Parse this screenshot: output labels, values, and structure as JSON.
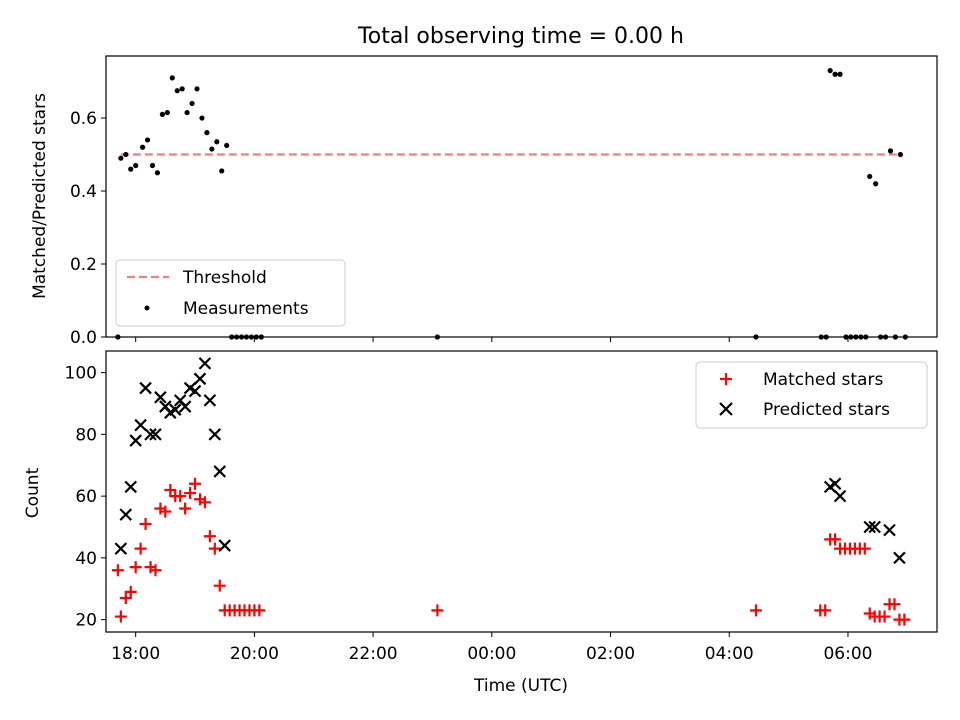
{
  "chart_data": [
    {
      "type": "scatter",
      "title": "Total observing time = 0.00 h",
      "ylabel": "Matched/Predicted stars",
      "xlabel": "",
      "xlim": [
        "17:30",
        "07:30"
      ],
      "ylim": [
        0,
        0.77
      ],
      "yticks": [
        "0.0",
        "0.2",
        "0.4",
        "0.6"
      ],
      "grid": false,
      "legend_position": "lower-left",
      "series": [
        {
          "name": "Threshold",
          "style": "dashed-line",
          "color": "#f08080",
          "points": [
            [
              "17:45",
              0.5
            ],
            [
              "06:55",
              0.5
            ]
          ]
        },
        {
          "name": "Measurements",
          "style": "dot",
          "color": "#000000",
          "points": [
            [
              "17:42",
              0.0
            ],
            [
              "17:45",
              0.49
            ],
            [
              "17:50",
              0.5
            ],
            [
              "17:55",
              0.46
            ],
            [
              "18:00",
              0.47
            ],
            [
              "18:07",
              0.52
            ],
            [
              "18:12",
              0.54
            ],
            [
              "18:17",
              0.47
            ],
            [
              "18:22",
              0.45
            ],
            [
              "18:27",
              0.61
            ],
            [
              "18:32",
              0.615
            ],
            [
              "18:37",
              0.71
            ],
            [
              "18:42",
              0.675
            ],
            [
              "18:47",
              0.68
            ],
            [
              "18:52",
              0.615
            ],
            [
              "18:57",
              0.64
            ],
            [
              "19:02",
              0.68
            ],
            [
              "19:07",
              0.6
            ],
            [
              "19:12",
              0.56
            ],
            [
              "19:17",
              0.515
            ],
            [
              "19:22",
              0.535
            ],
            [
              "19:27",
              0.455
            ],
            [
              "19:32",
              0.525
            ],
            [
              "19:37",
              0.0
            ],
            [
              "19:42",
              0.0
            ],
            [
              "19:47",
              0.0
            ],
            [
              "19:52",
              0.0
            ],
            [
              "19:57",
              0.0
            ],
            [
              "20:02",
              0.0
            ],
            [
              "20:07",
              0.0
            ],
            [
              "23:05",
              0.0
            ],
            [
              "04:27",
              0.0
            ],
            [
              "05:33",
              0.0
            ],
            [
              "05:38",
              0.0
            ],
            [
              "05:42",
              0.73
            ],
            [
              "05:47",
              0.72
            ],
            [
              "05:52",
              0.72
            ],
            [
              "05:58",
              0.0
            ],
            [
              "06:03",
              0.0
            ],
            [
              "06:08",
              0.0
            ],
            [
              "06:13",
              0.0
            ],
            [
              "06:18",
              0.0
            ],
            [
              "06:22",
              0.44
            ],
            [
              "06:28",
              0.42
            ],
            [
              "06:33",
              0.0
            ],
            [
              "06:38",
              0.0
            ],
            [
              "06:43",
              0.51
            ],
            [
              "06:48",
              0.0
            ],
            [
              "06:53",
              0.5
            ],
            [
              "06:58",
              0.0
            ]
          ]
        }
      ]
    },
    {
      "type": "scatter",
      "title": "",
      "xlabel": "Time (UTC)",
      "ylabel": "Count",
      "xlim": [
        "17:30",
        "07:30"
      ],
      "ylim": [
        16,
        107
      ],
      "xticks": [
        "18:00",
        "20:00",
        "22:00",
        "00:00",
        "02:00",
        "04:00",
        "06:00"
      ],
      "yticks": [
        "20",
        "40",
        "60",
        "80",
        "100"
      ],
      "grid": false,
      "legend_position": "top-right",
      "series": [
        {
          "name": "Matched stars",
          "marker": "plus",
          "color": "#ff0000",
          "points": [
            [
              "17:42",
              36
            ],
            [
              "17:45",
              21
            ],
            [
              "17:50",
              27
            ],
            [
              "17:55",
              29
            ],
            [
              "18:00",
              37
            ],
            [
              "18:05",
              43
            ],
            [
              "18:10",
              51
            ],
            [
              "18:15",
              37
            ],
            [
              "18:20",
              36
            ],
            [
              "18:25",
              56
            ],
            [
              "18:30",
              55
            ],
            [
              "18:35",
              62
            ],
            [
              "18:40",
              60
            ],
            [
              "18:45",
              60
            ],
            [
              "18:50",
              56
            ],
            [
              "18:55",
              61
            ],
            [
              "19:00",
              64
            ],
            [
              "19:05",
              59
            ],
            [
              "19:10",
              58
            ],
            [
              "19:15",
              47
            ],
            [
              "19:20",
              43
            ],
            [
              "19:25",
              31
            ],
            [
              "19:30",
              23
            ],
            [
              "19:35",
              23
            ],
            [
              "19:40",
              23
            ],
            [
              "19:45",
              23
            ],
            [
              "19:50",
              23
            ],
            [
              "19:55",
              23
            ],
            [
              "20:00",
              23
            ],
            [
              "20:05",
              23
            ],
            [
              "23:05",
              23
            ],
            [
              "04:27",
              23
            ],
            [
              "05:32",
              23
            ],
            [
              "05:37",
              23
            ],
            [
              "05:42",
              46
            ],
            [
              "05:47",
              46
            ],
            [
              "05:52",
              43
            ],
            [
              "05:57",
              43
            ],
            [
              "06:02",
              43
            ],
            [
              "06:07",
              43
            ],
            [
              "06:12",
              43
            ],
            [
              "06:17",
              43
            ],
            [
              "06:22",
              22
            ],
            [
              "06:27",
              21
            ],
            [
              "06:32",
              21
            ],
            [
              "06:37",
              21
            ],
            [
              "06:42",
              25
            ],
            [
              "06:47",
              25
            ],
            [
              "06:52",
              20
            ],
            [
              "06:57",
              20
            ]
          ]
        },
        {
          "name": "Predicted stars",
          "marker": "cross",
          "color": "#000000",
          "points": [
            [
              "17:45",
              43
            ],
            [
              "17:50",
              54
            ],
            [
              "17:55",
              63
            ],
            [
              "18:00",
              78
            ],
            [
              "18:05",
              83
            ],
            [
              "18:10",
              95
            ],
            [
              "18:15",
              80
            ],
            [
              "18:20",
              80
            ],
            [
              "18:25",
              92
            ],
            [
              "18:30",
              89
            ],
            [
              "18:35",
              87
            ],
            [
              "18:40",
              88
            ],
            [
              "18:45",
              91
            ],
            [
              "18:50",
              89
            ],
            [
              "18:55",
              95
            ],
            [
              "19:00",
              94
            ],
            [
              "19:05",
              98
            ],
            [
              "19:10",
              103
            ],
            [
              "19:15",
              91
            ],
            [
              "19:20",
              80
            ],
            [
              "19:25",
              68
            ],
            [
              "19:30",
              44
            ],
            [
              "05:42",
              63
            ],
            [
              "05:47",
              64
            ],
            [
              "05:52",
              60
            ],
            [
              "06:22",
              50
            ],
            [
              "06:27",
              50
            ],
            [
              "06:42",
              49
            ],
            [
              "06:52",
              40
            ]
          ]
        }
      ]
    }
  ]
}
